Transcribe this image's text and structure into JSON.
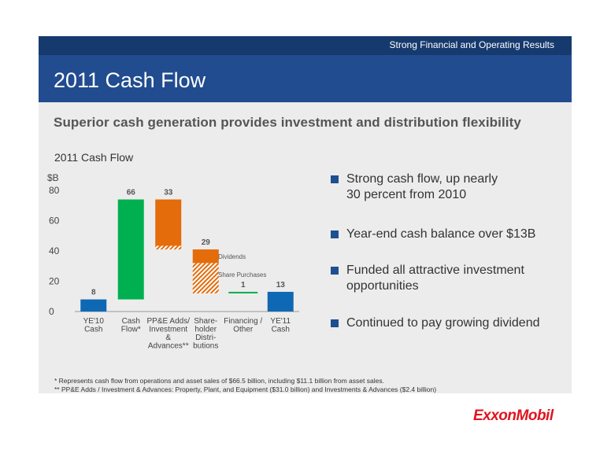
{
  "header": {
    "section_label": "Strong Financial and Operating Results",
    "title": "2011 Cash Flow",
    "subtitle": "Superior cash generation provides investment and distribution flexibility"
  },
  "chart_data": {
    "type": "bar",
    "subtype": "waterfall",
    "title": "2011 Cash Flow",
    "ylabel": "$B",
    "ylim": [
      0,
      80
    ],
    "yticks": [
      0,
      20,
      40,
      60,
      80
    ],
    "grid": false,
    "categories": [
      [
        "YE'10",
        "Cash"
      ],
      [
        "Cash",
        "Flow*"
      ],
      [
        "PP&E Adds/",
        "Investment",
        "&",
        "Advances**"
      ],
      [
        "Share-",
        "holder",
        "Distri-",
        "butions"
      ],
      [
        "Financing /",
        "Other"
      ],
      [
        "YE'11",
        "Cash"
      ]
    ],
    "bars": [
      {
        "category_index": 0,
        "label": "8",
        "value": 8,
        "start": 0,
        "end": 8,
        "color": "#0f68b4",
        "kind": "total"
      },
      {
        "category_index": 1,
        "label": "66",
        "value": 66,
        "start": 8,
        "end": 74,
        "color": "#00b050",
        "kind": "increase"
      },
      {
        "category_index": 2,
        "label": "33",
        "value": 33,
        "start": 74,
        "end": 41,
        "color": "#e46c0a",
        "kind": "decrease",
        "segments": [
          {
            "start": 74,
            "end": 43.4,
            "fill": "solid"
          },
          {
            "start": 43.4,
            "end": 41,
            "fill": "hatched"
          }
        ]
      },
      {
        "category_index": 3,
        "label": "29",
        "value": 29,
        "start": 41,
        "end": 12,
        "color": "#e46c0a",
        "kind": "decrease",
        "segments": [
          {
            "start": 41,
            "end": 32,
            "fill": "solid",
            "name": "Dividends"
          },
          {
            "start": 32,
            "end": 12,
            "fill": "hatched",
            "name": "Share Purchases"
          }
        ]
      },
      {
        "category_index": 4,
        "label": "1",
        "value": 1,
        "start": 12,
        "end": 13,
        "color": "#00b050",
        "kind": "increase"
      },
      {
        "category_index": 5,
        "label": "13",
        "value": 13,
        "start": 0,
        "end": 13,
        "color": "#0f68b4",
        "kind": "total"
      }
    ],
    "annotations": [
      "Dividends",
      "Share Purchases"
    ]
  },
  "bullets": [
    [
      "Strong cash flow, up nearly",
      "30 percent from 2010"
    ],
    [
      "Year-end cash balance over $13B"
    ],
    [
      "Funded all attractive investment",
      "opportunities"
    ],
    [
      "Continued to pay growing dividend"
    ]
  ],
  "footnotes": [
    "* Represents cash flow from operations and asset sales of $66.5 billion, including $11.1 billion from asset sales.",
    "** PP&E Adds / Investment & Advances:  Property, Plant, and Equipment ($31.0 billion) and Investments & Advances ($2.4 billion)"
  ],
  "logo": {
    "text": "ExxonMobil",
    "color": "#e0141e"
  }
}
